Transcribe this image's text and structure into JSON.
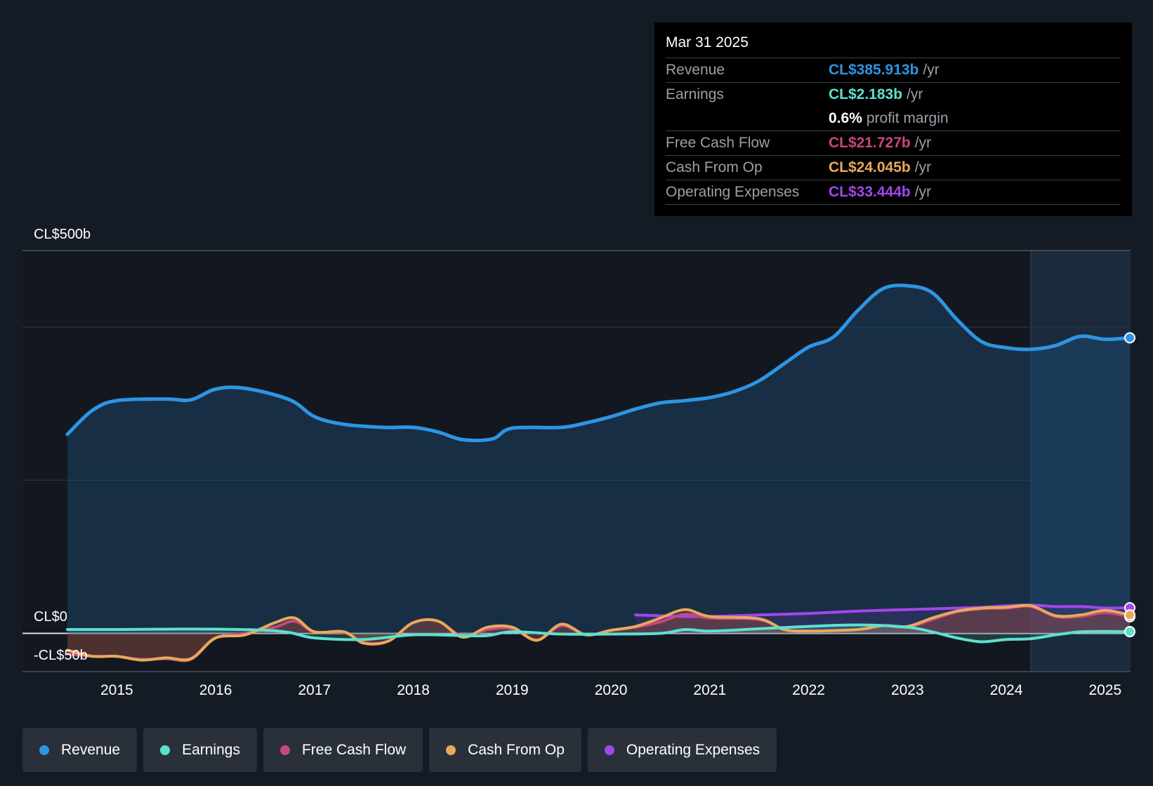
{
  "chart_data": {
    "type": "area",
    "currency": "CL$",
    "y_axis": {
      "top_label": "CL$500b",
      "zero_label": "CL$0",
      "bottom_label": "-CL$50b",
      "ylim": [
        -50,
        500
      ],
      "gridlines": [
        0,
        200,
        400,
        500
      ]
    },
    "x_ticks": [
      "2015",
      "2016",
      "2017",
      "2018",
      "2019",
      "2020",
      "2021",
      "2022",
      "2023",
      "2024",
      "2025"
    ],
    "x_range": [
      2014.5,
      2025.25
    ],
    "forecast_start": 2024.25,
    "series": [
      {
        "name": "Revenue",
        "color": "#2d95e3",
        "points": [
          [
            2014.5,
            260
          ],
          [
            2014.75,
            291
          ],
          [
            2015.0,
            304
          ],
          [
            2015.5,
            306
          ],
          [
            2015.75,
            305
          ],
          [
            2016.0,
            319
          ],
          [
            2016.3,
            320
          ],
          [
            2016.75,
            305
          ],
          [
            2017.0,
            283
          ],
          [
            2017.3,
            273
          ],
          [
            2017.7,
            269
          ],
          [
            2018.0,
            269
          ],
          [
            2018.25,
            263
          ],
          [
            2018.5,
            253
          ],
          [
            2018.8,
            254
          ],
          [
            2019.0,
            268
          ],
          [
            2019.5,
            269
          ],
          [
            2019.75,
            275
          ],
          [
            2020.0,
            283
          ],
          [
            2020.25,
            293
          ],
          [
            2020.5,
            301
          ],
          [
            2020.75,
            304
          ],
          [
            2021.0,
            308
          ],
          [
            2021.25,
            316
          ],
          [
            2021.5,
            330
          ],
          [
            2021.75,
            352
          ],
          [
            2022.0,
            374
          ],
          [
            2022.25,
            387
          ],
          [
            2022.5,
            422
          ],
          [
            2022.75,
            450
          ],
          [
            2023.0,
            454
          ],
          [
            2023.25,
            445
          ],
          [
            2023.5,
            410
          ],
          [
            2023.75,
            381
          ],
          [
            2024.0,
            373
          ],
          [
            2024.25,
            371
          ],
          [
            2024.5,
            376
          ],
          [
            2024.75,
            388
          ],
          [
            2025.0,
            384
          ],
          [
            2025.25,
            386
          ]
        ]
      },
      {
        "name": "Earnings",
        "color": "#5ce1d0",
        "points": [
          [
            2014.5,
            5
          ],
          [
            2015.0,
            5
          ],
          [
            2015.5,
            5.5
          ],
          [
            2016.0,
            5.5
          ],
          [
            2016.5,
            4
          ],
          [
            2016.75,
            1
          ],
          [
            2017.0,
            -6
          ],
          [
            2017.5,
            -8
          ],
          [
            2018.0,
            -2
          ],
          [
            2018.5,
            -3
          ],
          [
            2018.75,
            -3
          ],
          [
            2019.0,
            2
          ],
          [
            2019.5,
            -1
          ],
          [
            2020.0,
            -1
          ],
          [
            2020.5,
            0
          ],
          [
            2020.75,
            5
          ],
          [
            2021.0,
            3
          ],
          [
            2021.5,
            6
          ],
          [
            2022.0,
            9
          ],
          [
            2022.5,
            11
          ],
          [
            2023.0,
            8
          ],
          [
            2023.25,
            2
          ],
          [
            2023.5,
            -6
          ],
          [
            2023.75,
            -11
          ],
          [
            2024.0,
            -8
          ],
          [
            2024.25,
            -7
          ],
          [
            2024.5,
            -2
          ],
          [
            2024.75,
            2
          ],
          [
            2025.0,
            2.5
          ],
          [
            2025.25,
            2.2
          ]
        ]
      },
      {
        "name": "Free Cash Flow",
        "color": "#c8477f",
        "points": [
          [
            2014.5,
            -27
          ],
          [
            2014.75,
            -30
          ],
          [
            2015.0,
            -30
          ],
          [
            2015.25,
            -34
          ],
          [
            2015.5,
            -33
          ],
          [
            2015.75,
            -34
          ],
          [
            2016.0,
            -6
          ],
          [
            2016.3,
            0
          ],
          [
            2016.6,
            8
          ],
          [
            2016.8,
            16
          ],
          [
            2017.0,
            2
          ],
          [
            2017.3,
            1
          ],
          [
            2017.5,
            -12
          ],
          [
            2017.75,
            -10
          ],
          [
            2018.0,
            14
          ],
          [
            2018.25,
            16
          ],
          [
            2018.5,
            -4
          ],
          [
            2018.75,
            5
          ],
          [
            2019.0,
            6
          ],
          [
            2019.25,
            -9
          ],
          [
            2019.5,
            10
          ],
          [
            2019.75,
            -2
          ],
          [
            2020.0,
            4
          ],
          [
            2020.25,
            8
          ],
          [
            2020.5,
            15
          ],
          [
            2020.75,
            25
          ],
          [
            2021.0,
            20
          ],
          [
            2021.5,
            18
          ],
          [
            2021.75,
            5
          ],
          [
            2022.0,
            3
          ],
          [
            2022.5,
            5
          ],
          [
            2022.75,
            10
          ],
          [
            2023.0,
            8
          ],
          [
            2023.25,
            18
          ],
          [
            2023.5,
            28
          ],
          [
            2023.75,
            32
          ],
          [
            2024.0,
            33
          ],
          [
            2024.25,
            35
          ],
          [
            2024.5,
            22
          ],
          [
            2024.75,
            22
          ],
          [
            2025.0,
            27
          ],
          [
            2025.25,
            21.7
          ]
        ]
      },
      {
        "name": "Cash From Op",
        "color": "#e8a95a",
        "points": [
          [
            2014.5,
            -22
          ],
          [
            2014.75,
            -30
          ],
          [
            2015.0,
            -30
          ],
          [
            2015.25,
            -35
          ],
          [
            2015.5,
            -32
          ],
          [
            2015.75,
            -33
          ],
          [
            2016.0,
            -6
          ],
          [
            2016.3,
            -2
          ],
          [
            2016.6,
            14
          ],
          [
            2016.8,
            20
          ],
          [
            2017.0,
            2
          ],
          [
            2017.3,
            2
          ],
          [
            2017.5,
            -13
          ],
          [
            2017.75,
            -10
          ],
          [
            2018.0,
            14
          ],
          [
            2018.25,
            16
          ],
          [
            2018.5,
            -5
          ],
          [
            2018.75,
            8
          ],
          [
            2019.0,
            8
          ],
          [
            2019.25,
            -9
          ],
          [
            2019.5,
            12
          ],
          [
            2019.75,
            -2
          ],
          [
            2020.0,
            4
          ],
          [
            2020.25,
            9
          ],
          [
            2020.5,
            20
          ],
          [
            2020.75,
            31
          ],
          [
            2021.0,
            22
          ],
          [
            2021.5,
            19
          ],
          [
            2021.75,
            5
          ],
          [
            2022.0,
            3
          ],
          [
            2022.5,
            5
          ],
          [
            2022.75,
            10
          ],
          [
            2023.0,
            9
          ],
          [
            2023.25,
            20
          ],
          [
            2023.5,
            29
          ],
          [
            2023.75,
            33
          ],
          [
            2024.0,
            34
          ],
          [
            2024.25,
            36
          ],
          [
            2024.5,
            23
          ],
          [
            2024.75,
            24
          ],
          [
            2025.0,
            30
          ],
          [
            2025.25,
            24
          ]
        ]
      },
      {
        "name": "Operating Expenses",
        "color": "#a346ec",
        "points": [
          [
            2020.25,
            24
          ],
          [
            2020.75,
            22
          ],
          [
            2021.0,
            22
          ],
          [
            2021.5,
            24
          ],
          [
            2022.0,
            26
          ],
          [
            2022.5,
            29
          ],
          [
            2023.0,
            31
          ],
          [
            2023.5,
            33
          ],
          [
            2023.75,
            34
          ],
          [
            2024.0,
            36
          ],
          [
            2024.25,
            37
          ],
          [
            2024.5,
            35
          ],
          [
            2024.75,
            35
          ],
          [
            2025.0,
            33
          ],
          [
            2025.25,
            33.4
          ]
        ]
      }
    ]
  },
  "tooltip": {
    "date": "Mar 31 2025",
    "rows": [
      {
        "label": "Revenue",
        "value": "CL$385.913b",
        "unit": "/yr",
        "color": "#2d95e3"
      },
      {
        "label": "Earnings",
        "value": "CL$2.183b",
        "unit": "/yr",
        "color": "#5ce1d0"
      },
      {
        "label": "",
        "value": "0.6%",
        "unit": "profit margin",
        "color": "#ffffff"
      },
      {
        "label": "Free Cash Flow",
        "value": "CL$21.727b",
        "unit": "/yr",
        "color": "#c8477f"
      },
      {
        "label": "Cash From Op",
        "value": "CL$24.045b",
        "unit": "/yr",
        "color": "#e8a95a"
      },
      {
        "label": "Operating Expenses",
        "value": "CL$33.444b",
        "unit": "/yr",
        "color": "#a346ec"
      }
    ]
  },
  "legend": [
    {
      "label": "Revenue",
      "color": "#2d95e3"
    },
    {
      "label": "Earnings",
      "color": "#5ce1d0"
    },
    {
      "label": "Free Cash Flow",
      "color": "#c8477f"
    },
    {
      "label": "Cash From Op",
      "color": "#e8a95a"
    },
    {
      "label": "Operating Expenses",
      "color": "#a346ec"
    }
  ]
}
